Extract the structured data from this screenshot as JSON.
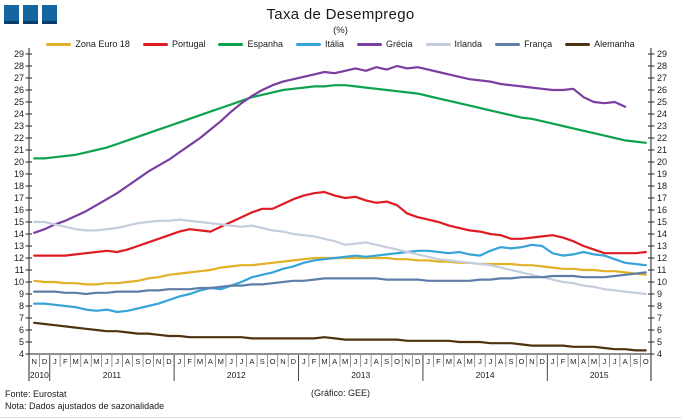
{
  "header": {
    "title": "Taxa de Desemprego",
    "subtitle": "(%)",
    "logo_color": "#1565A1",
    "logo_squares": 3
  },
  "footer": {
    "source": "Fonte: Eurostat",
    "note": "Nota: Dados ajustados de sazonalidade",
    "credit": "(Gráfico: GEE)"
  },
  "chart_data": {
    "type": "line",
    "title": "Taxa de Desemprego",
    "subtitle": "(%)",
    "xlabel": "",
    "ylabel": "",
    "ylim": [
      4,
      29
    ],
    "y_tick_step": 1,
    "grid": false,
    "legend_position": "top",
    "axis_color": "#222222",
    "month_labels": [
      "N",
      "D",
      "J",
      "F",
      "M",
      "A",
      "M",
      "J",
      "J",
      "A",
      "S",
      "O",
      "N",
      "D",
      "J",
      "F",
      "M",
      "A",
      "M",
      "J",
      "J",
      "A",
      "S",
      "O",
      "N",
      "D",
      "J",
      "F",
      "M",
      "A",
      "M",
      "J",
      "J",
      "A",
      "S",
      "O",
      "N",
      "D",
      "J",
      "F",
      "M",
      "A",
      "M",
      "J",
      "J",
      "A",
      "S",
      "O",
      "N",
      "D",
      "J",
      "F",
      "M",
      "A",
      "M",
      "J",
      "J",
      "A",
      "S",
      "O"
    ],
    "years": [
      {
        "label": "2010",
        "months": 2
      },
      {
        "label": "2011",
        "months": 12
      },
      {
        "label": "2012",
        "months": 12
      },
      {
        "label": "2013",
        "months": 12
      },
      {
        "label": "2014",
        "months": 12
      },
      {
        "label": "2015",
        "months": 10
      }
    ],
    "series": [
      {
        "name": "Zona Euro 18",
        "color": "#E3B128",
        "values": [
          10.1,
          10.0,
          10.0,
          9.9,
          9.9,
          9.8,
          9.8,
          9.9,
          9.9,
          10.0,
          10.1,
          10.3,
          10.4,
          10.6,
          10.7,
          10.8,
          10.9,
          11.0,
          11.2,
          11.3,
          11.4,
          11.4,
          11.5,
          11.6,
          11.7,
          11.8,
          11.9,
          12.0,
          12.0,
          12.0,
          12.0,
          12.0,
          12.0,
          12.0,
          12.0,
          11.9,
          11.9,
          11.8,
          11.8,
          11.7,
          11.7,
          11.6,
          11.6,
          11.5,
          11.5,
          11.5,
          11.5,
          11.4,
          11.4,
          11.3,
          11.2,
          11.1,
          11.1,
          11.0,
          11.0,
          10.9,
          10.9,
          10.8,
          10.7,
          10.6
        ]
      },
      {
        "name": "Portugal",
        "color": "#DF1C24",
        "values": [
          12.2,
          12.2,
          12.2,
          12.2,
          12.3,
          12.4,
          12.5,
          12.6,
          12.5,
          12.7,
          13.0,
          13.3,
          13.6,
          13.9,
          14.2,
          14.4,
          14.3,
          14.2,
          14.6,
          15.0,
          15.4,
          15.8,
          16.1,
          16.1,
          16.5,
          16.9,
          17.2,
          17.4,
          17.5,
          17.2,
          17.0,
          17.1,
          16.8,
          16.6,
          16.7,
          16.4,
          15.7,
          15.4,
          15.2,
          15.0,
          14.7,
          14.5,
          14.3,
          14.2,
          14.0,
          13.9,
          13.6,
          13.6,
          13.7,
          13.8,
          13.9,
          13.7,
          13.4,
          13.0,
          12.7,
          12.4,
          12.4,
          12.4,
          12.4,
          12.5
        ]
      },
      {
        "name": "Espanha",
        "color": "#0CA24F",
        "values": [
          20.3,
          20.3,
          20.4,
          20.5,
          20.6,
          20.8,
          21.0,
          21.2,
          21.5,
          21.8,
          22.1,
          22.4,
          22.7,
          23.0,
          23.3,
          23.6,
          23.9,
          24.2,
          24.5,
          24.8,
          25.1,
          25.4,
          25.6,
          25.8,
          26.0,
          26.1,
          26.2,
          26.3,
          26.3,
          26.4,
          26.4,
          26.3,
          26.2,
          26.1,
          26.0,
          25.9,
          25.8,
          25.7,
          25.5,
          25.3,
          25.1,
          24.9,
          24.7,
          24.5,
          24.3,
          24.1,
          23.9,
          23.7,
          23.6,
          23.4,
          23.2,
          23.0,
          22.8,
          22.6,
          22.4,
          22.2,
          22.0,
          21.8,
          21.7,
          21.6
        ]
      },
      {
        "name": "Itália",
        "color": "#36A4D9",
        "values": [
          8.2,
          8.2,
          8.1,
          8.0,
          7.9,
          7.7,
          7.6,
          7.7,
          7.5,
          7.6,
          7.8,
          8.0,
          8.2,
          8.5,
          8.8,
          9.0,
          9.3,
          9.5,
          9.4,
          9.7,
          10.0,
          10.4,
          10.6,
          10.8,
          11.1,
          11.3,
          11.6,
          11.8,
          11.9,
          12.0,
          12.1,
          12.2,
          12.1,
          12.2,
          12.3,
          12.4,
          12.5,
          12.6,
          12.6,
          12.5,
          12.4,
          12.5,
          12.3,
          12.2,
          12.6,
          12.9,
          12.8,
          12.9,
          13.1,
          13.0,
          12.4,
          12.2,
          12.3,
          12.5,
          12.3,
          12.2,
          11.9,
          11.6,
          11.5,
          11.4
        ]
      },
      {
        "name": "Grécia",
        "color": "#7A3FA0",
        "values": [
          14.1,
          14.4,
          14.8,
          15.1,
          15.5,
          15.9,
          16.4,
          16.9,
          17.4,
          18.0,
          18.6,
          19.2,
          19.7,
          20.2,
          20.8,
          21.4,
          22.0,
          22.7,
          23.4,
          24.2,
          24.9,
          25.5,
          26.0,
          26.4,
          26.7,
          26.9,
          27.1,
          27.3,
          27.5,
          27.4,
          27.6,
          27.8,
          27.6,
          27.9,
          27.7,
          28.0,
          27.8,
          27.9,
          27.7,
          27.5,
          27.3,
          27.1,
          26.9,
          26.8,
          26.7,
          26.5,
          26.4,
          26.3,
          26.2,
          26.1,
          26.0,
          26.0,
          26.1,
          25.4,
          25.0,
          24.9,
          25.0,
          24.6,
          null,
          null
        ]
      },
      {
        "name": "Irlanda",
        "color": "#C4CEDF",
        "values": [
          15.0,
          15.0,
          14.8,
          14.6,
          14.4,
          14.3,
          14.3,
          14.4,
          14.5,
          14.7,
          14.9,
          15.0,
          15.1,
          15.1,
          15.2,
          15.1,
          15.0,
          14.9,
          14.8,
          14.7,
          14.6,
          14.7,
          14.5,
          14.3,
          14.2,
          14.0,
          13.9,
          13.8,
          13.6,
          13.4,
          13.1,
          13.2,
          13.3,
          13.1,
          12.9,
          12.7,
          12.5,
          12.3,
          12.1,
          11.9,
          11.8,
          11.7,
          11.6,
          11.5,
          11.4,
          11.2,
          11.0,
          10.8,
          10.6,
          10.4,
          10.2,
          10.0,
          9.9,
          9.7,
          9.6,
          9.4,
          9.3,
          9.2,
          9.1,
          9.0
        ]
      },
      {
        "name": "França",
        "color": "#5E7EA9",
        "values": [
          9.2,
          9.2,
          9.2,
          9.1,
          9.1,
          9.0,
          9.1,
          9.1,
          9.2,
          9.2,
          9.2,
          9.3,
          9.3,
          9.4,
          9.4,
          9.4,
          9.5,
          9.5,
          9.6,
          9.7,
          9.7,
          9.8,
          9.8,
          9.9,
          10.0,
          10.1,
          10.1,
          10.2,
          10.3,
          10.3,
          10.3,
          10.3,
          10.3,
          10.3,
          10.2,
          10.2,
          10.2,
          10.2,
          10.1,
          10.1,
          10.1,
          10.1,
          10.1,
          10.2,
          10.2,
          10.3,
          10.3,
          10.4,
          10.4,
          10.4,
          10.5,
          10.5,
          10.5,
          10.4,
          10.4,
          10.4,
          10.5,
          10.6,
          10.7,
          10.8
        ]
      },
      {
        "name": "Alemanha",
        "color": "#4F3310",
        "values": [
          6.6,
          6.5,
          6.4,
          6.3,
          6.2,
          6.1,
          6.0,
          5.9,
          5.9,
          5.8,
          5.7,
          5.7,
          5.6,
          5.5,
          5.5,
          5.4,
          5.4,
          5.4,
          5.4,
          5.4,
          5.4,
          5.3,
          5.3,
          5.3,
          5.3,
          5.3,
          5.3,
          5.3,
          5.4,
          5.3,
          5.2,
          5.2,
          5.2,
          5.2,
          5.2,
          5.2,
          5.1,
          5.1,
          5.1,
          5.1,
          5.1,
          5.0,
          5.0,
          5.0,
          4.9,
          4.9,
          4.9,
          4.8,
          4.7,
          4.7,
          4.7,
          4.7,
          4.6,
          4.6,
          4.6,
          4.5,
          4.4,
          4.4,
          4.3,
          4.3
        ]
      }
    ]
  }
}
